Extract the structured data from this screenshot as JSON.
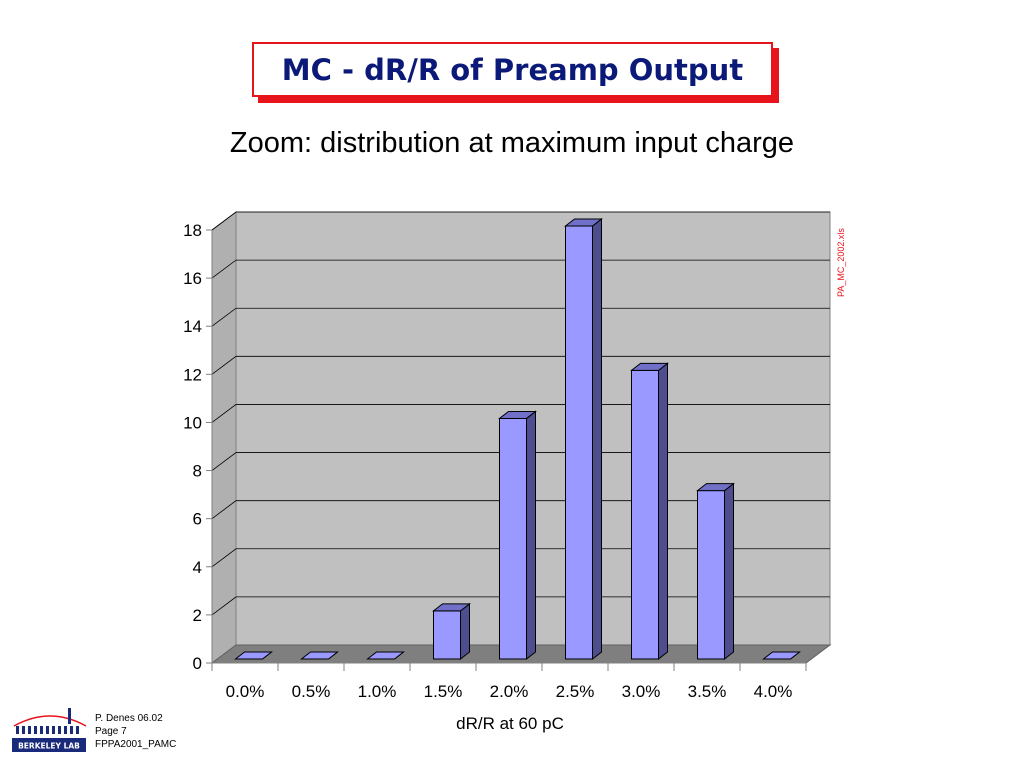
{
  "slide": {
    "title": "MC - dR/R of Preamp Output",
    "subtitle": "Zoom: distribution at maximum input charge",
    "side_note": "PA_MC_2002.xls",
    "footer": {
      "line1": "P. Denes 06.02",
      "line2": "Page 7",
      "line3": "FPPA2001_PAMC"
    },
    "logo_text": "BERKELEY LAB"
  },
  "colors": {
    "title_text": "#0b1a78",
    "title_border": "#e8141c",
    "bar_front": "#9999ff",
    "bar_side": "#4d4d8f",
    "bar_top": "#7070c8",
    "wall": "#c0c0c0",
    "floor": "#7f7f7f",
    "note": "#e8141c"
  },
  "chart_data": {
    "type": "bar",
    "style": "3d-column",
    "categories": [
      "0.0%",
      "0.5%",
      "1.0%",
      "1.5%",
      "2.0%",
      "2.5%",
      "3.0%",
      "3.5%",
      "4.0%"
    ],
    "values": [
      0,
      0,
      0,
      2,
      10,
      18,
      12,
      7,
      0
    ],
    "title": "",
    "xlabel": "dR/R at 60 pC",
    "ylabel": "",
    "ylim": [
      0,
      18
    ],
    "yticks": [
      0,
      2,
      4,
      6,
      8,
      10,
      12,
      14,
      16,
      18
    ],
    "grid": true,
    "legend": "none"
  }
}
